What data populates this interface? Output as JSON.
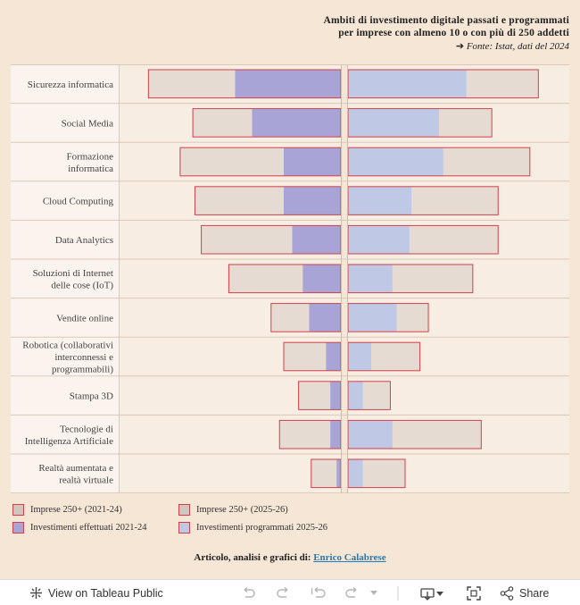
{
  "header": {
    "title_line1": "Ambiti di investimento digitale passati e programmati",
    "title_line2": "per imprese con almeno 10 o con più di 250 addetti",
    "source_arrow": "➔",
    "source_label": "Fonte:",
    "source_text": "Istat, dati del 2024"
  },
  "colors": {
    "background": "#f5e6d6",
    "bar_grey": "#e5dbd2",
    "bar_purple": "#a8a5d6",
    "bar_lightblue": "#bfc8e4",
    "outline_red": "#d0404a",
    "row_label_bg": "#fbf4ee",
    "row_plot_bg": "#f8ede3"
  },
  "chart_data": {
    "type": "bar",
    "orientation": "diverging-horizontal",
    "categories": [
      "Sicurezza informatica",
      "Social Media",
      "Formazione informatica",
      "Cloud Computing",
      "Data Analytics",
      "Soluzioni di Internet delle cose (IoT)",
      "Vendite online",
      "Robotica (collaborativi interconnessi e programmabili)",
      "Stampa 3D",
      "Tecnologie di Intelligenza Artificiale",
      "Realtà aumentata e realtà virtuale"
    ],
    "category_lines": [
      [
        "Sicurezza informatica"
      ],
      [
        "Social Media"
      ],
      [
        "Formazione",
        "informatica"
      ],
      [
        "Cloud Computing"
      ],
      [
        "Data Analytics"
      ],
      [
        "Soluzioni di Internet",
        "delle cose (IoT)"
      ],
      [
        "Vendite online"
      ],
      [
        "Robotica (collaborativi",
        "interconnessi e",
        "programmabili)"
      ],
      [
        "Stampa 3D"
      ],
      [
        "Tecnologie di",
        "Intelligenza Artificiale"
      ],
      [
        "Realtà aumentata e",
        "realtà virtuale"
      ]
    ],
    "left_panel": {
      "series": [
        {
          "name": "Imprese 250+ (2021-24)",
          "values": [
            91,
            70,
            76,
            69,
            66,
            53,
            33,
            27,
            20,
            29,
            14
          ]
        },
        {
          "name": "Investimenti effettuati 2021-24",
          "values": [
            50,
            42,
            27,
            27,
            23,
            18,
            15,
            7,
            5,
            5,
            2
          ]
        }
      ]
    },
    "right_panel": {
      "series": [
        {
          "name": "Imprese 250+ (2025-26)",
          "values": [
            90,
            68,
            86,
            71,
            71,
            59,
            38,
            34,
            20,
            63,
            27
          ]
        },
        {
          "name": "Investimenti programmati 2025-26",
          "values": [
            56,
            43,
            45,
            30,
            29,
            21,
            23,
            11,
            7,
            21,
            7
          ]
        }
      ]
    },
    "xlim": [
      0,
      100
    ],
    "grid": true,
    "legend_position": "bottom-left"
  },
  "legend": {
    "items": [
      {
        "label": "Imprese 250+ (2021-24)",
        "swatch_color": "#cfc6bd"
      },
      {
        "label": "Imprese 250+ (2025-26)",
        "swatch_color": "#cfc6bd"
      },
      {
        "label": "Investimenti effettuati 2021-24",
        "swatch_color": "#a8a5d6"
      },
      {
        "label": "Investimenti programmati 2025-26",
        "swatch_color": "#bfc8e4"
      }
    ]
  },
  "credit": {
    "prefix": "Articolo, analisi e grafici di:",
    "author": "Enrico Calabrese"
  },
  "toolbar": {
    "view_label": "View on Tableau Public",
    "share_label": "Share",
    "icons": [
      "tableau-logo-icon",
      "undo-icon",
      "redo-icon",
      "revert-icon",
      "refresh-icon",
      "dropdown-icon",
      "download-icon",
      "fullscreen-icon",
      "share-icon"
    ]
  }
}
